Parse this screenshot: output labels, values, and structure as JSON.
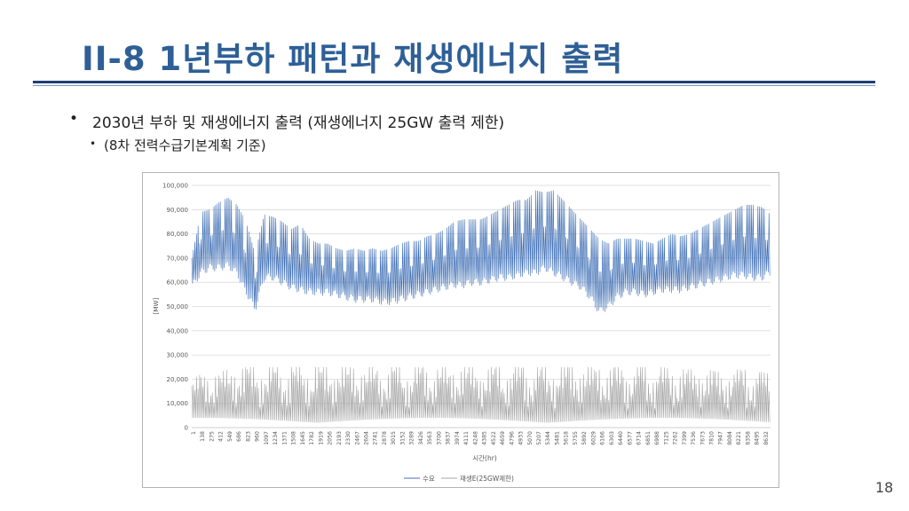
{
  "slide": {
    "title": "II-8   1년부하 패턴과 재생에너지 출력",
    "bullet_main": "2030년 부하 및 재생에너지 출력 (재생에너지 25GW 출력 제한)",
    "bullet_sub": "(8차 전력수급기본계획 기준)",
    "bullet_marker": "•",
    "page_number": "18"
  },
  "colors": {
    "title": "#2e5f96",
    "rule": "#1f3f73",
    "demand_line": "#3f6fb5",
    "renewable_line": "#a6a6a6"
  },
  "chart_data": {
    "type": "line",
    "title": "",
    "xlabel": "시간(hr)",
    "ylabel": "[MW]",
    "ylim": [
      0,
      100000
    ],
    "yticks": [
      0,
      10000,
      20000,
      30000,
      40000,
      50000,
      60000,
      70000,
      80000,
      90000,
      100000
    ],
    "ytick_labels": [
      "0",
      "10,000",
      "20,000",
      "30,000",
      "40,000",
      "50,000",
      "60,000",
      "70,000",
      "80,000",
      "90,000",
      "100,000"
    ],
    "xlim": [
      1,
      8760
    ],
    "xtick_labels": [
      "1",
      "138",
      "275",
      "412",
      "549",
      "686",
      "823",
      "960",
      "1097",
      "1234",
      "1371",
      "1508",
      "1645",
      "1782",
      "1919",
      "2056",
      "2193",
      "2330",
      "2467",
      "2604",
      "2741",
      "2878",
      "3015",
      "3152",
      "3289",
      "3426",
      "3563",
      "3700",
      "3837",
      "3974",
      "4111",
      "4248",
      "4385",
      "4522",
      "4659",
      "4796",
      "4933",
      "5070",
      "5207",
      "5344",
      "5481",
      "5618",
      "5755",
      "5892",
      "6029",
      "6166",
      "6303",
      "6440",
      "6577",
      "6714",
      "6851",
      "6988",
      "7125",
      "7262",
      "7399",
      "7536",
      "7673",
      "7810",
      "7947",
      "8084",
      "8221",
      "8358",
      "8495",
      "8632"
    ],
    "grid": true,
    "legend_position": "bottom",
    "series": [
      {
        "name": "수요",
        "hourly_resolution": "envelope sampled approx. every 137 h (daily peak / trough)",
        "x": [
          1,
          138,
          275,
          412,
          549,
          686,
          823,
          960,
          1097,
          1234,
          1371,
          1508,
          1645,
          1782,
          1919,
          2056,
          2193,
          2330,
          2467,
          2604,
          2741,
          2878,
          3015,
          3152,
          3289,
          3426,
          3563,
          3700,
          3837,
          3974,
          4111,
          4248,
          4385,
          4522,
          4659,
          4796,
          4933,
          5070,
          5207,
          5344,
          5481,
          5618,
          5755,
          5892,
          6029,
          6166,
          6303,
          6440,
          6577,
          6714,
          6851,
          6988,
          7125,
          7262,
          7399,
          7536,
          7673,
          7810,
          7947,
          8084,
          8221,
          8358,
          8495,
          8632,
          8760
        ],
        "peak": [
          70000,
          89000,
          90000,
          93000,
          95000,
          92000,
          85000,
          72000,
          88000,
          87000,
          85000,
          82000,
          84000,
          78000,
          76000,
          76000,
          74000,
          73000,
          74000,
          73000,
          74000,
          73000,
          74000,
          76000,
          77000,
          77000,
          79000,
          80000,
          82000,
          85000,
          86000,
          86000,
          86000,
          88000,
          90000,
          92000,
          94000,
          94000,
          98000,
          97000,
          98000,
          94000,
          90000,
          86000,
          82000,
          78000,
          76000,
          78000,
          78000,
          78000,
          77000,
          76000,
          78000,
          80000,
          79000,
          80000,
          82000,
          84000,
          86000,
          88000,
          90000,
          92000,
          92000,
          91000,
          88000
        ],
        "trough": [
          58000,
          64000,
          66000,
          66000,
          67000,
          64000,
          56000,
          49000,
          62000,
          62000,
          60000,
          58000,
          57000,
          56000,
          56000,
          56000,
          55000,
          54000,
          53000,
          53000,
          53000,
          52000,
          52000,
          53000,
          54000,
          55000,
          56000,
          57000,
          58000,
          59000,
          59000,
          60000,
          60000,
          61000,
          62000,
          62000,
          63000,
          64000,
          64000,
          66000,
          64000,
          62000,
          60000,
          58000,
          54000,
          48000,
          50000,
          54000,
          56000,
          56000,
          55000,
          56000,
          57000,
          57000,
          57000,
          58000,
          59000,
          60000,
          61000,
          62000,
          63000,
          63000,
          62000,
          62000,
          64000
        ]
      },
      {
        "name": "재생E(25GW제한)",
        "hourly_resolution": "envelope sampled approx. every 137 h (daily peak / night minimum)",
        "x": [
          1,
          138,
          275,
          412,
          549,
          686,
          823,
          960,
          1097,
          1234,
          1371,
          1508,
          1645,
          1782,
          1919,
          2056,
          2193,
          2330,
          2467,
          2604,
          2741,
          2878,
          3015,
          3152,
          3289,
          3426,
          3563,
          3700,
          3837,
          3974,
          4111,
          4248,
          4385,
          4522,
          4659,
          4796,
          4933,
          5070,
          5207,
          5344,
          5481,
          5618,
          5755,
          5892,
          6029,
          6166,
          6303,
          6440,
          6577,
          6714,
          6851,
          6988,
          7125,
          7262,
          7399,
          7536,
          7673,
          7810,
          7947,
          8084,
          8221,
          8358,
          8495,
          8632,
          8760
        ],
        "peak": [
          20000,
          22000,
          22000,
          23000,
          24000,
          25000,
          25000,
          25000,
          25000,
          25000,
          25000,
          25000,
          25000,
          25000,
          25000,
          25000,
          25000,
          25000,
          25000,
          25000,
          25000,
          25000,
          25000,
          25000,
          25000,
          25000,
          25000,
          25000,
          25000,
          25000,
          25000,
          25000,
          25000,
          25000,
          25000,
          25000,
          25000,
          25000,
          25000,
          25000,
          25000,
          25000,
          25000,
          25000,
          25000,
          25000,
          25000,
          25000,
          25000,
          25000,
          25000,
          25000,
          25000,
          24000,
          24000,
          24000,
          24000,
          24000,
          23000,
          23000,
          24000,
          24000,
          23000,
          23000,
          22000
        ],
        "trough": [
          2000,
          2000,
          2000,
          2000,
          2000,
          2000,
          2000,
          2000,
          2000,
          2000,
          2000,
          2000,
          2000,
          2000,
          2000,
          2000,
          2000,
          2000,
          2000,
          2000,
          2000,
          2000,
          2000,
          2000,
          2000,
          2000,
          2000,
          2000,
          2000,
          2000,
          2000,
          2000,
          2000,
          2000,
          2000,
          2000,
          2000,
          2000,
          2000,
          2000,
          2000,
          2000,
          2000,
          2000,
          2000,
          2000,
          2000,
          2000,
          2000,
          2000,
          2000,
          2000,
          2000,
          2000,
          2000,
          2000,
          2000,
          2000,
          2000,
          2000,
          2000,
          2000,
          2000,
          2000,
          2000
        ]
      }
    ]
  }
}
